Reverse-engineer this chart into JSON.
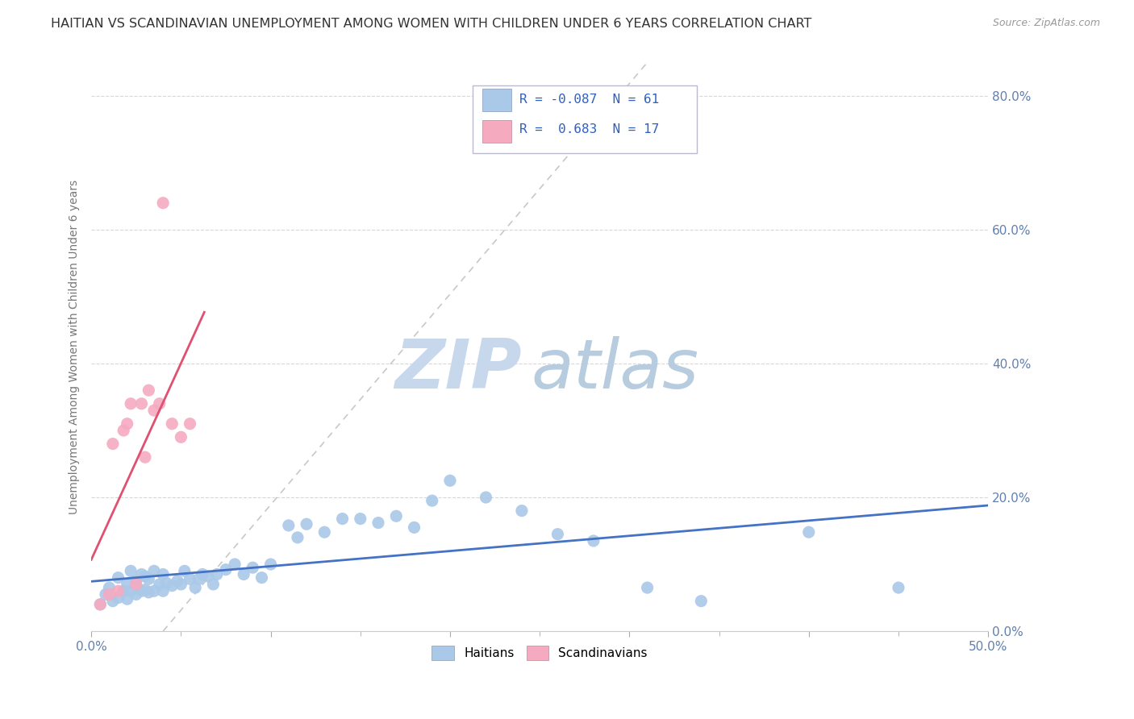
{
  "title": "HAITIAN VS SCANDINAVIAN UNEMPLOYMENT AMONG WOMEN WITH CHILDREN UNDER 6 YEARS CORRELATION CHART",
  "source": "Source: ZipAtlas.com",
  "ylabel": "Unemployment Among Women with Children Under 6 years",
  "xlim": [
    0.0,
    0.5
  ],
  "ylim": [
    0.0,
    0.85
  ],
  "ytick_vals": [
    0.0,
    0.2,
    0.4,
    0.6,
    0.8
  ],
  "ytick_labels": [
    "0.0%",
    "20.0%",
    "40.0%",
    "60.0%",
    "80.0%"
  ],
  "xtick_edge_labels": [
    "0.0%",
    "50.0%"
  ],
  "haitian_R": -0.087,
  "haitian_N": 61,
  "scandinavian_R": 0.683,
  "scandinavian_N": 17,
  "haitian_color": "#aac8e8",
  "scandinavian_color": "#f5aac0",
  "haitian_line_color": "#4472c4",
  "scandinavian_line_color": "#e05070",
  "ref_line_color": "#c8c8c8",
  "background_color": "#ffffff",
  "grid_color": "#d0d8e8",
  "watermark_zip_color": "#c8d8ec",
  "watermark_atlas_color": "#b8cce0",
  "title_fontsize": 11.5,
  "label_fontsize": 10,
  "tick_fontsize": 11,
  "legend_r_color": "#3060c0",
  "axis_label_color": "#6080b0",
  "haitian_x": [
    0.005,
    0.008,
    0.01,
    0.012,
    0.015,
    0.015,
    0.018,
    0.02,
    0.02,
    0.022,
    0.022,
    0.025,
    0.025,
    0.028,
    0.028,
    0.03,
    0.03,
    0.032,
    0.032,
    0.035,
    0.035,
    0.038,
    0.04,
    0.04,
    0.042,
    0.045,
    0.048,
    0.05,
    0.052,
    0.055,
    0.058,
    0.06,
    0.062,
    0.065,
    0.068,
    0.07,
    0.075,
    0.08,
    0.085,
    0.09,
    0.095,
    0.1,
    0.11,
    0.115,
    0.12,
    0.13,
    0.14,
    0.15,
    0.16,
    0.17,
    0.18,
    0.19,
    0.2,
    0.22,
    0.24,
    0.26,
    0.28,
    0.31,
    0.34,
    0.4,
    0.45
  ],
  "haitian_y": [
    0.04,
    0.055,
    0.065,
    0.045,
    0.05,
    0.08,
    0.06,
    0.048,
    0.07,
    0.06,
    0.09,
    0.055,
    0.075,
    0.06,
    0.085,
    0.062,
    0.082,
    0.058,
    0.078,
    0.06,
    0.09,
    0.07,
    0.06,
    0.085,
    0.072,
    0.068,
    0.075,
    0.07,
    0.09,
    0.078,
    0.065,
    0.078,
    0.085,
    0.082,
    0.07,
    0.085,
    0.092,
    0.1,
    0.085,
    0.095,
    0.08,
    0.1,
    0.158,
    0.14,
    0.16,
    0.148,
    0.168,
    0.168,
    0.162,
    0.172,
    0.155,
    0.195,
    0.225,
    0.2,
    0.18,
    0.145,
    0.135,
    0.065,
    0.045,
    0.148,
    0.065
  ],
  "scandinavian_x": [
    0.005,
    0.01,
    0.012,
    0.015,
    0.018,
    0.02,
    0.022,
    0.025,
    0.028,
    0.03,
    0.032,
    0.035,
    0.038,
    0.04,
    0.045,
    0.05,
    0.055
  ],
  "scandinavian_y": [
    0.04,
    0.055,
    0.28,
    0.06,
    0.3,
    0.31,
    0.34,
    0.07,
    0.34,
    0.26,
    0.36,
    0.33,
    0.34,
    0.64,
    0.31,
    0.29,
    0.31
  ]
}
